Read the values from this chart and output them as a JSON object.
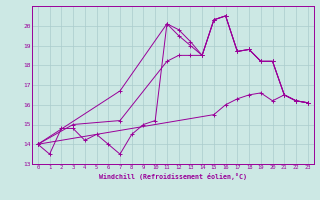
{
  "xlabel": "Windchill (Refroidissement éolien,°C)",
  "bg_color": "#cce8e4",
  "grid_color": "#aacccc",
  "line_color": "#990099",
  "xlim": [
    -0.5,
    23.5
  ],
  "ylim": [
    13,
    21
  ],
  "yticks": [
    13,
    14,
    15,
    16,
    17,
    18,
    19,
    20
  ],
  "xticks": [
    0,
    1,
    2,
    3,
    4,
    5,
    6,
    7,
    8,
    9,
    10,
    11,
    12,
    13,
    14,
    15,
    16,
    17,
    18,
    19,
    20,
    21,
    22,
    23
  ],
  "line1_x": [
    0,
    1,
    2,
    3,
    4,
    5,
    6,
    7,
    8,
    9,
    10,
    11,
    12,
    13,
    14,
    15,
    16,
    17,
    18,
    19,
    20,
    21,
    22,
    23
  ],
  "line1_y": [
    14.0,
    13.5,
    14.8,
    14.8,
    14.2,
    14.5,
    14.0,
    13.5,
    14.5,
    15.0,
    15.2,
    20.1,
    19.8,
    19.2,
    18.5,
    20.3,
    20.5,
    18.7,
    18.8,
    18.2,
    18.2,
    16.5,
    16.2,
    16.1
  ],
  "line2_x": [
    0,
    7,
    11,
    12,
    13,
    14,
    15,
    16,
    17,
    18,
    19,
    20,
    21,
    22,
    23
  ],
  "line2_y": [
    14.0,
    16.7,
    20.1,
    19.5,
    19.0,
    18.5,
    20.3,
    20.5,
    18.7,
    18.8,
    18.2,
    18.2,
    16.5,
    16.2,
    16.1
  ],
  "line3_x": [
    0,
    3,
    7,
    11,
    12,
    13,
    14,
    15,
    16,
    17,
    18,
    19,
    20,
    21,
    22,
    23
  ],
  "line3_y": [
    14.0,
    15.0,
    15.2,
    18.2,
    18.5,
    18.5,
    18.5,
    20.3,
    20.5,
    18.7,
    18.8,
    18.2,
    18.2,
    16.5,
    16.2,
    16.1
  ],
  "line4_x": [
    0,
    15,
    16,
    17,
    18,
    19,
    20,
    21,
    22,
    23
  ],
  "line4_y": [
    14.0,
    15.5,
    16.0,
    16.3,
    16.5,
    16.6,
    16.2,
    16.5,
    16.2,
    16.1
  ]
}
